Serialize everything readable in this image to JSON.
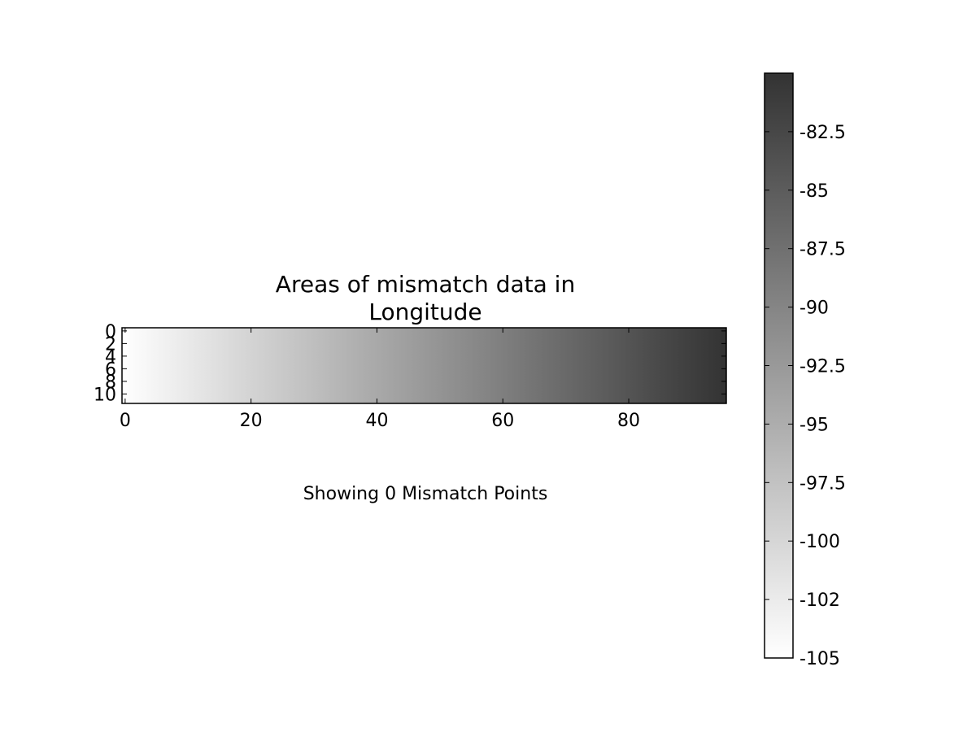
{
  "chart_data": {
    "type": "heatmap",
    "title_lines": [
      "Areas of mismatch data in",
      "Longitude"
    ],
    "caption": "Showing 0 Mismatch Points",
    "xlabel": "",
    "ylabel": "",
    "xlim": [
      -0.5,
      95.5
    ],
    "ylim": [
      11.5,
      -0.5
    ],
    "x_ticks": [
      0,
      20,
      40,
      60,
      80
    ],
    "x_tick_labels": [
      "0",
      "20",
      "40",
      "60",
      "80"
    ],
    "y_ticks": [
      0,
      2,
      4,
      6,
      8,
      10
    ],
    "y_tick_labels": [
      "0",
      "2",
      "4",
      "6",
      "8",
      "10"
    ],
    "columns": 96,
    "rows": 12,
    "value_range": [
      -105,
      -80
    ],
    "value_start": -105,
    "value_end": -80,
    "gradient_direction": "left-to-right",
    "colormap": "gray_r",
    "colorbar": {
      "range": [
        -105,
        -80
      ],
      "ticks": [
        -105,
        -102.5,
        -100,
        -97.5,
        -95,
        -92.5,
        -90,
        -87.5,
        -85,
        -82.5
      ],
      "tick_labels": [
        "-105",
        "-102",
        "-100",
        "-97.5",
        "-95",
        "-92.5",
        "-90",
        "-87.5",
        "-85",
        "-82.5"
      ],
      "low_color": "#ffffff",
      "high_color": "#333333"
    }
  }
}
